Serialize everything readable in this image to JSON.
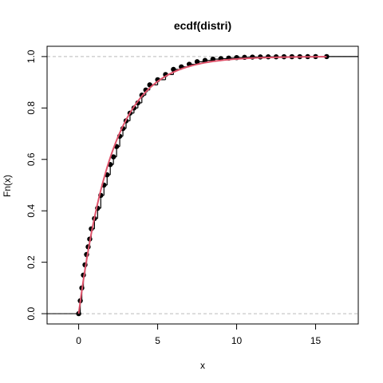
{
  "chart_data": {
    "type": "line",
    "title": "ecdf(distri)",
    "xlabel": "x",
    "ylabel": "Fn(x)",
    "xlim": [
      -2,
      17.7
    ],
    "ylim": [
      -0.04,
      1.04
    ],
    "x_ticks": [
      0,
      5,
      10,
      15
    ],
    "x_tick_labels": [
      "0",
      "5",
      "10",
      "15"
    ],
    "y_ticks": [
      0,
      0.2,
      0.4,
      0.6,
      0.8,
      1
    ],
    "y_tick_labels": [
      "0.0",
      "0.2",
      "0.4",
      "0.6",
      "0.8",
      "1.0"
    ],
    "reference_lines_y": [
      0,
      1
    ],
    "grid": false,
    "series": [
      {
        "kind": "ecdf-steps",
        "color": "#000000",
        "points": [
          [
            0.0,
            0.0
          ],
          [
            0.1,
            0.05
          ],
          [
            0.2,
            0.1
          ],
          [
            0.3,
            0.15
          ],
          [
            0.4,
            0.19
          ],
          [
            0.5,
            0.23
          ],
          [
            0.6,
            0.26
          ],
          [
            0.7,
            0.29
          ],
          [
            0.8,
            0.33
          ],
          [
            1.0,
            0.37
          ],
          [
            1.2,
            0.41
          ],
          [
            1.4,
            0.46
          ],
          [
            1.6,
            0.5
          ],
          [
            1.8,
            0.54
          ],
          [
            2.0,
            0.58
          ],
          [
            2.2,
            0.61
          ],
          [
            2.4,
            0.65
          ],
          [
            2.6,
            0.69
          ],
          [
            2.8,
            0.72
          ],
          [
            3.0,
            0.75
          ],
          [
            3.25,
            0.78
          ],
          [
            3.5,
            0.8
          ],
          [
            3.75,
            0.82
          ],
          [
            4.0,
            0.85
          ],
          [
            4.25,
            0.87
          ],
          [
            4.5,
            0.89
          ],
          [
            5.0,
            0.91
          ],
          [
            5.5,
            0.93
          ],
          [
            6.0,
            0.95
          ],
          [
            6.5,
            0.96
          ],
          [
            7.0,
            0.97
          ],
          [
            7.5,
            0.98
          ],
          [
            8.0,
            0.985
          ],
          [
            8.5,
            0.99
          ],
          [
            9.0,
            0.992
          ],
          [
            9.5,
            0.994
          ],
          [
            10.0,
            0.996
          ],
          [
            10.5,
            0.997
          ],
          [
            11.0,
            0.998
          ],
          [
            11.5,
            0.9985
          ],
          [
            12.0,
            0.999
          ],
          [
            12.5,
            0.999
          ],
          [
            13.0,
            0.9993
          ],
          [
            13.5,
            0.9995
          ],
          [
            14.0,
            0.9996
          ],
          [
            14.5,
            0.9998
          ],
          [
            15.0,
            0.9999
          ],
          [
            15.7,
            1.0
          ]
        ]
      },
      {
        "kind": "theoretical-cdf",
        "color": "#DF536B",
        "rate": 0.467
      }
    ]
  }
}
